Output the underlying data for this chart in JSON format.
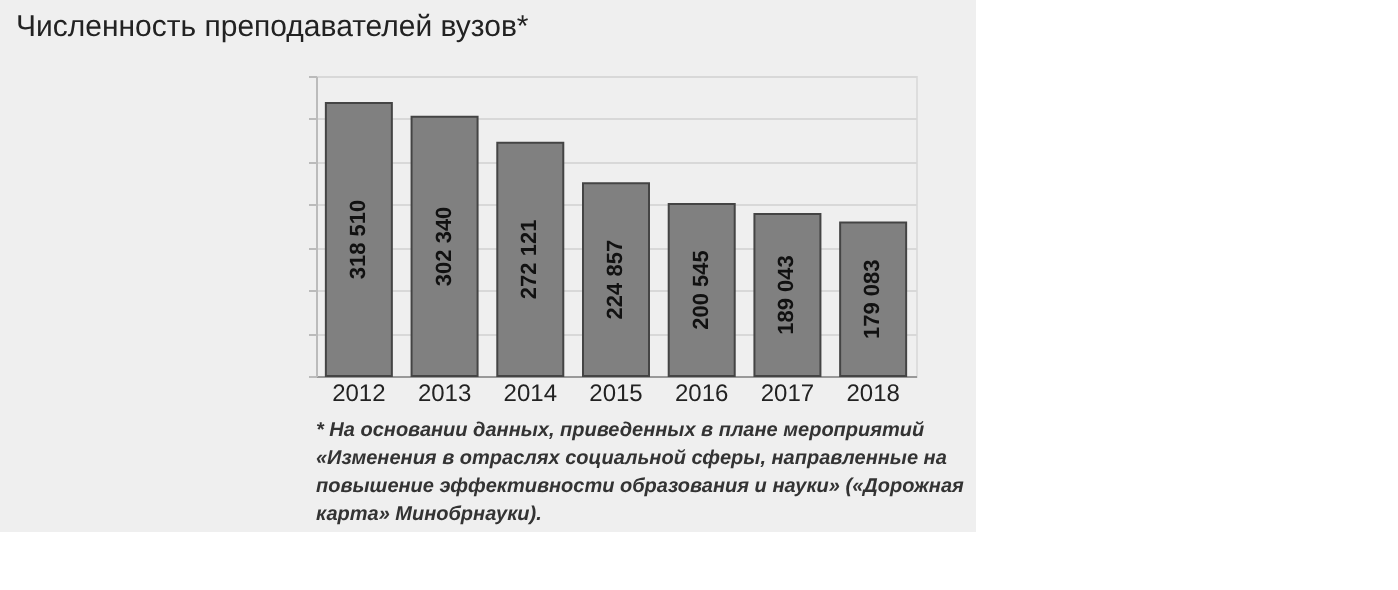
{
  "chart_data": {
    "type": "bar",
    "title": "Численность преподавателей вузов*",
    "categories": [
      "2012",
      "2013",
      "2014",
      "2015",
      "2016",
      "2017",
      "2018"
    ],
    "values": [
      318510,
      302340,
      272121,
      224857,
      200545,
      189043,
      179083
    ],
    "value_labels": [
      "318 510",
      "302 340",
      "272 121",
      "224 857",
      "200 545",
      "189 043",
      "179 083"
    ],
    "color": "#808080",
    "grid": "y",
    "annotations": [
      "* На основании данных, приведенных в плане мероприятий «Изменения в отраслях социальной сферы, направленные на повышение эффективности образования и науки» («Дорожная карта» Минобрнауки)."
    ]
  }
}
